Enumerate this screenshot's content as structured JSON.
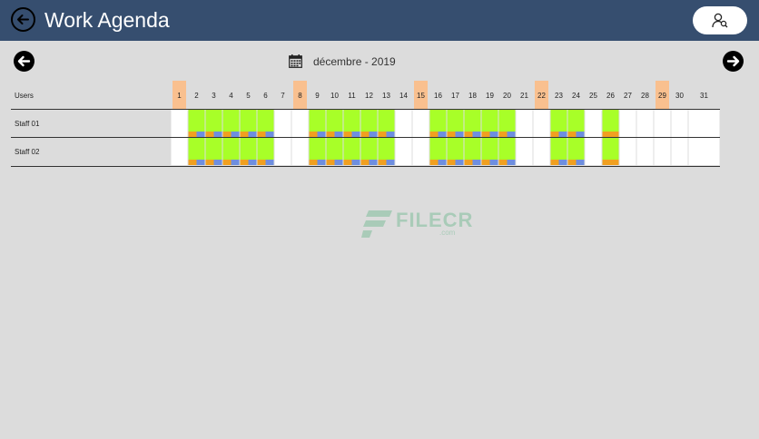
{
  "app": {
    "title": "Work Agenda"
  },
  "header": {
    "month_label": "décembre - 2019",
    "users_header": "Users"
  },
  "colors": {
    "header_bg": "#364e6f",
    "weekend_highlight": "#f9c08f",
    "worked_day": "#a8ff28",
    "slot_orange": "#f0a020",
    "slot_blue": "#6e8fdf",
    "empty_day": "#ffffff"
  },
  "days": [
    "1",
    "2",
    "3",
    "4",
    "5",
    "6",
    "7",
    "8",
    "9",
    "10",
    "11",
    "12",
    "13",
    "14",
    "15",
    "16",
    "17",
    "18",
    "19",
    "20",
    "21",
    "22",
    "23",
    "24",
    "25",
    "26",
    "27",
    "28",
    "29",
    "30",
    "31"
  ],
  "highlighted_days": [
    1,
    8,
    15,
    22,
    29
  ],
  "staff": [
    {
      "name": "Staff 01",
      "worked_days": [
        2,
        3,
        4,
        5,
        6,
        9,
        10,
        11,
        12,
        13,
        16,
        17,
        18,
        19,
        20,
        23,
        24,
        26
      ],
      "orange_only_days": [
        26
      ]
    },
    {
      "name": "Staff 02",
      "worked_days": [
        2,
        3,
        4,
        5,
        6,
        9,
        10,
        11,
        12,
        13,
        16,
        17,
        18,
        19,
        20,
        23,
        24,
        26
      ],
      "orange_only_days": [
        26
      ]
    }
  ],
  "watermark": {
    "text": "FILECR",
    "suffix": ".com"
  }
}
